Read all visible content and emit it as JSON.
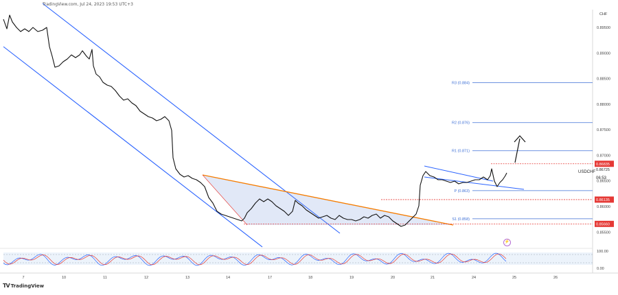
{
  "header": {
    "attribution": "TradingView.com, Jul 24, 2023 19:53 UTC+3"
  },
  "symbol": "USDCHF",
  "currency": "CHF",
  "current_price_label": "0.86725",
  "countdown": "06:53",
  "logo_text": "TradingView",
  "chart_data": {
    "type": "candlestick",
    "title": "",
    "ylim": [
      0.8545,
      0.8985
    ],
    "y_ticks": [
      "0.89500",
      "0.89000",
      "0.88500",
      "0.88000",
      "0.87500",
      "0.87000",
      "0.86500",
      "0.86000",
      "0.85500"
    ],
    "x_ticks": [
      "7",
      "10",
      "11",
      "12",
      "13",
      "14",
      "17",
      "18",
      "19",
      "20",
      "21",
      "24",
      "25",
      "26"
    ],
    "pivot_levels": [
      {
        "label": "R3 (0.884)",
        "value": 0.8842
      },
      {
        "label": "R2 (0.876)",
        "value": 0.8764
      },
      {
        "label": "R1 (0.871)",
        "value": 0.8709
      },
      {
        "label": "P (0.863)",
        "value": 0.8631
      },
      {
        "label": "S1 (0.858)",
        "value": 0.8576
      }
    ],
    "price_labels": [
      {
        "label": "0.86835",
        "value": 0.86835,
        "color": "#e53935"
      },
      {
        "label": "0.86135",
        "value": 0.86135,
        "color": "#e53935"
      },
      {
        "label": "0.85660",
        "value": 0.8566,
        "color": "#e53935"
      }
    ],
    "oscillator": {
      "ticks": [
        "100.00",
        "0.00"
      ]
    }
  }
}
